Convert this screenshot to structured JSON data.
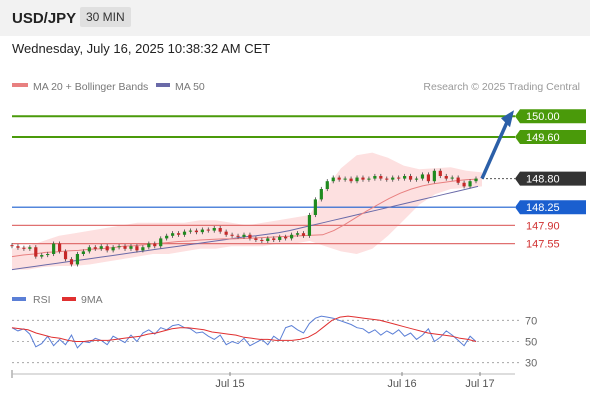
{
  "header": {
    "pair": "USD/JPY",
    "timeframe": "30 MIN"
  },
  "datetime": "Wednesday, July 16, 2025 10:38:32 AM CET",
  "legend": {
    "ma20_label": "MA 20 + Bollinger Bands",
    "ma50_label": "MA 50",
    "credit": "Research © 2025 Trading Central",
    "rsi_label": "RSI",
    "rsi_ma_label": "9MA"
  },
  "colors": {
    "candle_up": "#1f8a1f",
    "candle_down": "#c62828",
    "bollinger_fill": "#fde0e0",
    "ma20": "#e88080",
    "ma50": "#6a6aa8",
    "green_level": "#4a9a0a",
    "blue_level": "#1a5fcf",
    "red_level": "#e07070",
    "current_label": "#333333",
    "arrow": "#2b5fa8",
    "rsi_line": "#5b7fd6",
    "rsi_ma_line": "#e03030"
  },
  "chart_data": [
    {
      "type": "candlestick",
      "title": "USD/JPY",
      "ylim": [
        146.85,
        150.35
      ],
      "x_ticks": [
        "Jul 15",
        "Jul 16",
        "Jul 17"
      ],
      "current_price": 148.8,
      "levels": [
        {
          "value": 150.0,
          "label": "150.00",
          "role": "resistance"
        },
        {
          "value": 149.6,
          "label": "149.60",
          "role": "resistance"
        },
        {
          "value": 148.8,
          "label": "148.80",
          "role": "current"
        },
        {
          "value": 148.25,
          "label": "148.25",
          "role": "pivot"
        },
        {
          "value": 147.9,
          "label": "147.90",
          "role": "support"
        },
        {
          "value": 147.55,
          "label": "147.55",
          "role": "support"
        }
      ],
      "close_series": [
        147.5,
        147.47,
        147.45,
        147.48,
        147.3,
        147.33,
        147.35,
        147.55,
        147.4,
        147.25,
        147.15,
        147.35,
        147.4,
        147.48,
        147.45,
        147.5,
        147.42,
        147.48,
        147.5,
        147.45,
        147.5,
        147.42,
        147.48,
        147.55,
        147.5,
        147.65,
        147.7,
        147.75,
        147.72,
        147.78,
        147.8,
        147.77,
        147.82,
        147.8,
        147.85,
        147.78,
        147.72,
        147.7,
        147.68,
        147.72,
        147.65,
        147.62,
        147.6,
        147.65,
        147.62,
        147.68,
        147.65,
        147.72,
        147.75,
        147.7,
        148.1,
        148.4,
        148.6,
        148.75,
        148.82,
        148.78,
        148.8,
        148.75,
        148.82,
        148.78,
        148.8,
        148.85,
        148.8,
        148.78,
        148.82,
        148.8,
        148.85,
        148.78,
        148.8,
        148.88,
        148.75,
        148.95,
        148.85,
        148.8,
        148.82,
        148.72,
        148.65,
        148.75,
        148.8
      ],
      "ma20": [
        147.3,
        147.33,
        147.35,
        147.38,
        147.39,
        147.41,
        147.42,
        147.44,
        147.45,
        147.47,
        147.5,
        147.51,
        147.53,
        147.55,
        147.57,
        147.59,
        147.6,
        147.62,
        147.63,
        147.64,
        147.64,
        147.65,
        147.66,
        147.67,
        147.68,
        147.69,
        147.7,
        147.71,
        147.72,
        147.8,
        147.92,
        148.05,
        148.18,
        148.3,
        148.42,
        148.52,
        148.6,
        148.66,
        148.7,
        148.73,
        148.76,
        148.78,
        148.79
      ],
      "ma50": [
        147.05,
        147.08,
        147.11,
        147.14,
        147.17,
        147.2,
        147.23,
        147.26,
        147.29,
        147.32,
        147.35,
        147.38,
        147.41,
        147.44,
        147.47,
        147.5,
        147.53,
        147.56,
        147.59,
        147.62,
        147.65,
        147.68,
        147.7,
        147.73,
        147.76,
        147.8,
        147.85,
        147.9,
        147.95,
        148,
        148.05,
        148.1,
        148.15,
        148.2,
        148.25,
        148.3,
        148.35,
        148.4,
        148.45,
        148.5,
        148.55,
        148.6,
        148.65
      ],
      "bollinger_upper": [
        147.45,
        147.5,
        147.6,
        147.7,
        147.75,
        147.8,
        147.85,
        147.9,
        147.95,
        147.95,
        147.95,
        147.95,
        148.0,
        148.0,
        147.95,
        147.9,
        147.95,
        148.0,
        148.05,
        148.1,
        148.6,
        149.0,
        149.25,
        149.3,
        149.2,
        149.05,
        148.98,
        149.0,
        149.02,
        148.95,
        148.92
      ],
      "bollinger_lower": [
        147.05,
        147.05,
        147.1,
        147.12,
        147.12,
        147.15,
        147.2,
        147.25,
        147.3,
        147.35,
        147.35,
        147.4,
        147.45,
        147.45,
        147.5,
        147.5,
        147.5,
        147.55,
        147.55,
        147.6,
        147.5,
        147.4,
        147.35,
        147.45,
        147.7,
        148.0,
        148.3,
        148.5,
        148.6,
        148.62,
        148.65
      ],
      "forecast_arrow": {
        "from": 148.8,
        "to": 150.0
      }
    },
    {
      "type": "line",
      "title": "RSI",
      "ylim": [
        25,
        75
      ],
      "y_ticks": [
        70,
        50,
        30
      ],
      "series": [
        {
          "name": "RSI",
          "values": [
            63,
            60,
            62,
            57,
            45,
            48,
            55,
            46,
            52,
            47,
            56,
            44,
            50,
            49,
            53,
            51,
            47,
            55,
            52,
            49,
            56,
            50,
            58,
            61,
            57,
            63,
            61,
            65,
            66,
            63,
            62,
            58,
            59,
            55,
            52,
            56,
            47,
            50,
            48,
            53,
            46,
            49,
            52,
            47,
            55,
            51,
            63,
            65,
            61,
            58,
            67,
            72,
            74,
            73,
            72,
            70,
            68,
            66,
            63,
            62,
            58,
            61,
            56,
            60,
            57,
            61,
            55,
            58,
            52,
            56,
            62,
            50,
            54,
            60,
            56,
            51,
            46,
            55,
            50
          ]
        },
        {
          "name": "9MA",
          "values": [
            63,
            62,
            61,
            58,
            56,
            54,
            53,
            51,
            50,
            50,
            51,
            51,
            51,
            52,
            53,
            54,
            55,
            57,
            58,
            60,
            62,
            63,
            63,
            62,
            61,
            59,
            58,
            57,
            56,
            54,
            53,
            52,
            52,
            51,
            51,
            51,
            52,
            54,
            58,
            64,
            70,
            73,
            74,
            73,
            72,
            71,
            70,
            68,
            66,
            64,
            62,
            60,
            58,
            57,
            56,
            55,
            53,
            52,
            50
          ]
        }
      ]
    }
  ]
}
